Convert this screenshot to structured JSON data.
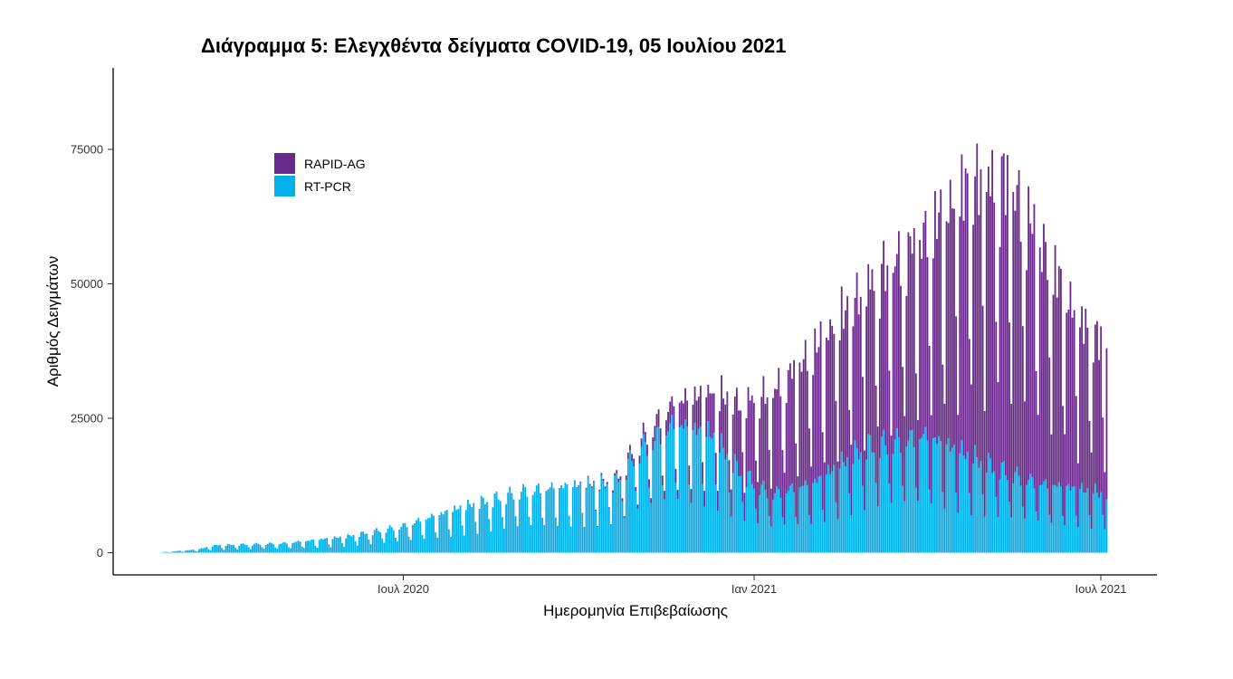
{
  "chart_data": {
    "type": "bar",
    "stacked": true,
    "title": "Διάγραμμα 5: Ελεγχθέντα δείγματα COVID-19, 05 Ιουλίου 2021",
    "xlabel": "Ημερομηνία Επιβεβαίωσης",
    "ylabel": "Αριθμός Δειγμάτων",
    "ylim": [
      0,
      87000
    ],
    "y_ticks": [
      {
        "value": 0,
        "label": "0"
      },
      {
        "value": 25000,
        "label": "25000"
      },
      {
        "value": 50000,
        "label": "50000"
      },
      {
        "value": 75000,
        "label": "75000"
      }
    ],
    "x_range": [
      "2020-02-26",
      "2021-07-05"
    ],
    "x_ticks": [
      {
        "date": "2020-07-01",
        "label": "Ιουλ 2020"
      },
      {
        "date": "2021-01-01",
        "label": "Ιαν 2021"
      },
      {
        "date": "2021-07-01",
        "label": "Ιουλ 2021"
      }
    ],
    "legend_position": "top-left",
    "series": [
      {
        "name": "RAPID-AG",
        "color": "#6a2a8c",
        "stack_order": "top"
      },
      {
        "name": "RT-PCR",
        "color": "#00b0ec",
        "stack_order": "bottom"
      }
    ],
    "keypoints": [
      {
        "date": "2020-02-26",
        "rt_pcr": 100,
        "rapid_ag": 0
      },
      {
        "date": "2020-03-15",
        "rt_pcr": 600,
        "rapid_ag": 0
      },
      {
        "date": "2020-03-25",
        "rt_pcr": 1400,
        "rapid_ag": 0
      },
      {
        "date": "2020-05-01",
        "rt_pcr": 1800,
        "rapid_ag": 0
      },
      {
        "date": "2020-06-01",
        "rt_pcr": 3000,
        "rapid_ag": 0
      },
      {
        "date": "2020-07-01",
        "rt_pcr": 5000,
        "rapid_ag": 0
      },
      {
        "date": "2020-08-01",
        "rt_pcr": 8500,
        "rapid_ag": 0
      },
      {
        "date": "2020-09-01",
        "rt_pcr": 11500,
        "rapid_ag": 0
      },
      {
        "date": "2020-10-01",
        "rt_pcr": 12500,
        "rapid_ag": 100
      },
      {
        "date": "2020-10-20",
        "rt_pcr": 13000,
        "rapid_ag": 500
      },
      {
        "date": "2020-11-01",
        "rt_pcr": 19000,
        "rapid_ag": 1500
      },
      {
        "date": "2020-11-20",
        "rt_pcr": 24000,
        "rapid_ag": 4000
      },
      {
        "date": "2020-12-10",
        "rt_pcr": 22000,
        "rapid_ag": 8000
      },
      {
        "date": "2020-12-25",
        "rt_pcr": 15000,
        "rapid_ag": 13000
      },
      {
        "date": "2021-01-10",
        "rt_pcr": 11000,
        "rapid_ag": 19000
      },
      {
        "date": "2021-02-01",
        "rt_pcr": 13000,
        "rapid_ag": 25000
      },
      {
        "date": "2021-03-01",
        "rt_pcr": 20000,
        "rapid_ag": 30000
      },
      {
        "date": "2021-04-01",
        "rt_pcr": 22000,
        "rapid_ag": 38000
      },
      {
        "date": "2021-04-25",
        "rt_pcr": 18000,
        "rapid_ag": 52000
      },
      {
        "date": "2021-05-15",
        "rt_pcr": 15000,
        "rapid_ag": 55000
      },
      {
        "date": "2021-06-01",
        "rt_pcr": 13000,
        "rapid_ag": 45000
      },
      {
        "date": "2021-06-20",
        "rt_pcr": 12000,
        "rapid_ag": 32000
      },
      {
        "date": "2021-07-05",
        "rt_pcr": 11000,
        "rapid_ag": 28000
      }
    ]
  }
}
